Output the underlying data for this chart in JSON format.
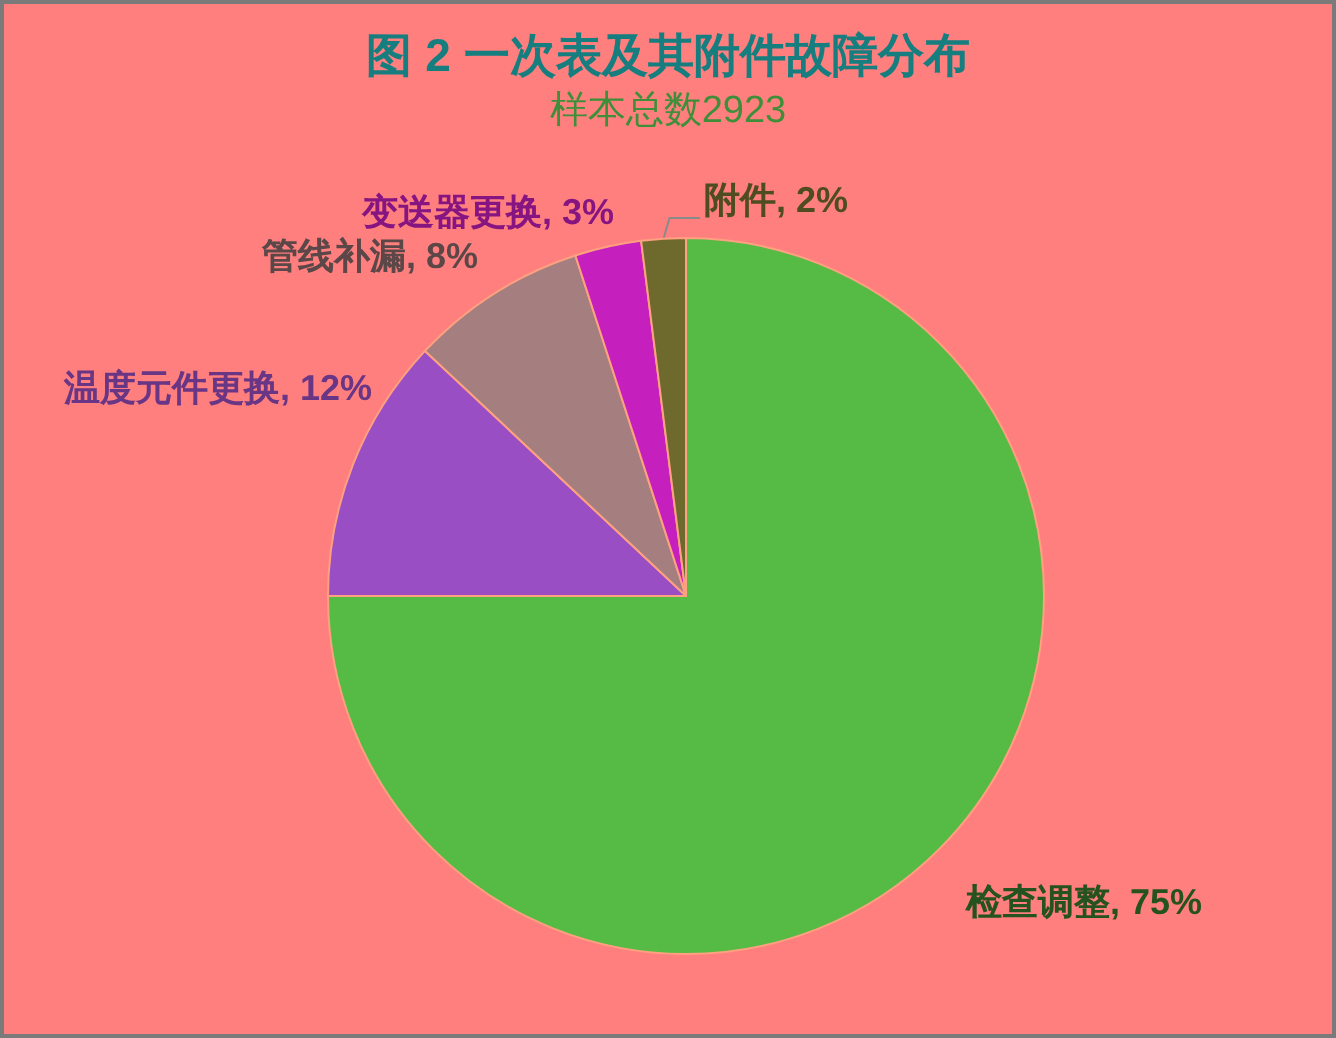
{
  "chart_data": {
    "type": "pie",
    "title": "图 2 一次表及其附件故障分布",
    "subtitle": "样本总数2923",
    "categories": [
      "检查调整",
      "温度元件更换",
      "管线补漏",
      "变送器更换",
      "附件"
    ],
    "values": [
      75,
      12,
      8,
      3,
      2
    ],
    "value_labels": [
      "75%",
      "12%",
      "8%",
      "3%",
      "2%"
    ],
    "colors": [
      "#55bb44",
      "#9a4ec4",
      "#a57f80",
      "#c51fbd",
      "#6e6a2e"
    ],
    "legend": false
  }
}
